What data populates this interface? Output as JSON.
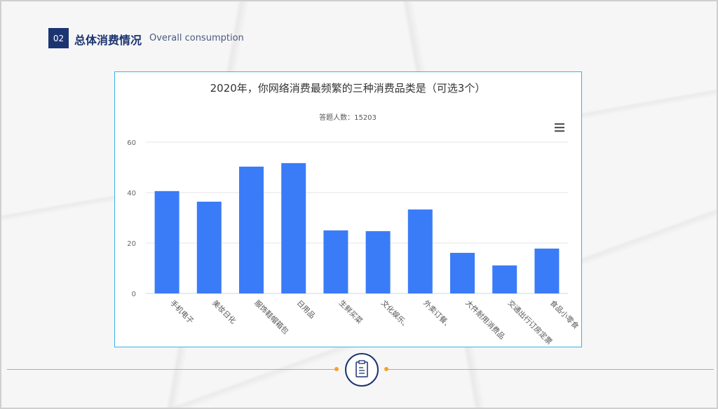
{
  "header": {
    "number": "02",
    "title": "总体消费情况",
    "subtitle": "Overall consumption"
  },
  "chart_data": {
    "type": "bar",
    "title": "2020年，你网络消费最频繁的三种消费品类是（可选3个）",
    "subtitle": "答题人数：15203",
    "categories": [
      "手机电子",
      "美妆日化",
      "服饰鞋帽箱包",
      "日用品",
      "生鲜买菜",
      "文化娱乐、",
      "外卖订餐、",
      "大件耐用消费品",
      "交通出行订房定票",
      "食品小零食"
    ],
    "values": [
      40.6,
      36.4,
      50.3,
      51.7,
      25.0,
      24.7,
      33.3,
      16.1,
      11.1,
      17.8
    ],
    "ylim": [
      0,
      60
    ],
    "yticks": [
      "0",
      "20",
      "40",
      "60"
    ],
    "grid": true,
    "bar_color": "#3a7cf8"
  },
  "icons": {
    "menu": "hamburger-menu-icon",
    "footer": "clipboard-icon"
  }
}
